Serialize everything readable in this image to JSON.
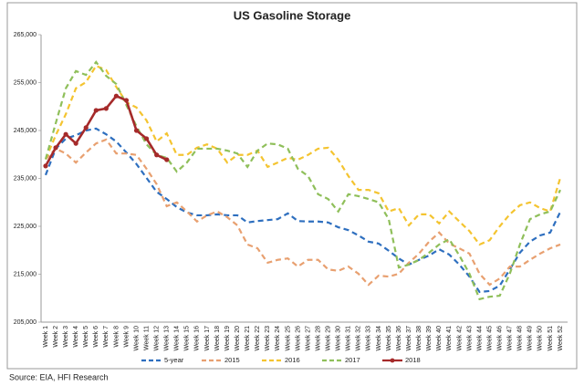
{
  "chart_data": {
    "type": "line",
    "title": "US Gasoline Storage",
    "categories": [
      "Week 1",
      "Week 2",
      "Week 3",
      "Week 4",
      "Week 5",
      "Week 6",
      "Week 7",
      "Week 8",
      "Week 9",
      "Week 10",
      "Week 11",
      "Week 12",
      "Week 13",
      "Week 14",
      "Week 15",
      "Week 16",
      "Week 17",
      "Week 18",
      "Week 19",
      "Week 20",
      "Week 21",
      "Week 22",
      "Week 23",
      "Week 24",
      "Week 25",
      "Week 26",
      "Week 27",
      "Week 28",
      "Week 29",
      "Week 30",
      "Week 31",
      "Week 32",
      "Week 33",
      "Week 34",
      "Week 35",
      "Week 36",
      "Week 37",
      "Week 38",
      "Week 39",
      "Week 40",
      "Week 41",
      "Week 42",
      "Week 43",
      "Week 44",
      "Week 45",
      "Week 46",
      "Week 47",
      "Week 48",
      "Week 49",
      "Week 50",
      "Week 51",
      "Week 52"
    ],
    "ylim": [
      205000,
      265000
    ],
    "yticks": [
      {
        "value": 205000,
        "label": "205,000"
      },
      {
        "value": 215000,
        "label": "215,000"
      },
      {
        "value": 225000,
        "label": "225,000"
      },
      {
        "value": 235000,
        "label": "235,000"
      },
      {
        "value": 245000,
        "label": "245,000"
      },
      {
        "value": 255000,
        "label": "255,000"
      },
      {
        "value": 265000,
        "label": "265,000"
      }
    ],
    "grid": false,
    "legend": "bottom",
    "series": [
      {
        "name": "5-year",
        "color": "#2e6fbf",
        "dashed": true,
        "markers": false,
        "values": [
          235700,
          241200,
          243300,
          244000,
          245000,
          245400,
          244200,
          242700,
          240400,
          238000,
          235100,
          232200,
          230700,
          229000,
          227900,
          227300,
          227300,
          227500,
          227300,
          227300,
          225800,
          226100,
          226300,
          226500,
          227700,
          226100,
          226000,
          226000,
          225800,
          224800,
          224200,
          223100,
          221800,
          221400,
          219900,
          218300,
          217000,
          218000,
          218900,
          220200,
          219100,
          217000,
          214500,
          211300,
          211500,
          212600,
          216000,
          219500,
          221800,
          223100,
          223700,
          228000
        ]
      },
      {
        "name": "2015",
        "color": "#e8a070",
        "dashed": true,
        "markers": false,
        "values": [
          239000,
          241200,
          240200,
          238300,
          240400,
          242300,
          243100,
          240200,
          240200,
          239900,
          237000,
          233800,
          229200,
          230000,
          228100,
          226000,
          227300,
          228100,
          226900,
          225200,
          221200,
          220400,
          217400,
          218000,
          218300,
          216600,
          218000,
          218000,
          216000,
          215700,
          216600,
          215100,
          212800,
          214700,
          214500,
          215100,
          217400,
          219300,
          221800,
          223700,
          221400,
          220400,
          219300,
          215100,
          212800,
          214100,
          216600,
          216600,
          218000,
          219300,
          220400,
          221200
        ]
      },
      {
        "name": "2016",
        "color": "#f4c430",
        "dashed": true,
        "markers": false,
        "values": [
          239000,
          244000,
          248400,
          253800,
          255100,
          258500,
          257600,
          254100,
          250900,
          249800,
          247100,
          242700,
          244400,
          239900,
          239900,
          241400,
          242100,
          241200,
          238300,
          239900,
          239900,
          240800,
          237400,
          238300,
          239300,
          238900,
          239900,
          241200,
          241400,
          238900,
          235500,
          232600,
          232600,
          231900,
          228100,
          228800,
          225200,
          227500,
          227500,
          225600,
          228100,
          226000,
          224000,
          221200,
          222100,
          225000,
          227500,
          229400,
          230000,
          228800,
          228100,
          235100
        ]
      },
      {
        "name": "2017",
        "color": "#8fbf5a",
        "dashed": true,
        "markers": false,
        "values": [
          239000,
          246500,
          253800,
          257400,
          256600,
          259300,
          256400,
          254700,
          250300,
          245900,
          242100,
          239900,
          239300,
          236400,
          238300,
          241200,
          241200,
          241200,
          240800,
          240200,
          237400,
          240800,
          242300,
          242100,
          241200,
          237000,
          235500,
          231700,
          230700,
          228100,
          231700,
          231300,
          230700,
          230000,
          226500,
          216400,
          217000,
          218000,
          219500,
          221200,
          222300,
          218900,
          215100,
          209800,
          210300,
          210500,
          215100,
          221200,
          226500,
          227500,
          228100,
          232600
        ]
      },
      {
        "name": "2018",
        "color": "#a52a2a",
        "dashed": false,
        "markers": true,
        "values": [
          237600,
          241400,
          244200,
          242300,
          245600,
          249200,
          249600,
          252200,
          251300,
          245000,
          243300,
          239900,
          238900,
          null,
          null,
          null,
          null,
          null,
          null,
          null,
          null,
          null,
          null,
          null,
          null,
          null,
          null,
          null,
          null,
          null,
          null,
          null,
          null,
          null,
          null,
          null,
          null,
          null,
          null,
          null,
          null,
          null,
          null,
          null,
          null,
          null,
          null,
          null,
          null,
          null,
          null,
          null
        ]
      }
    ]
  },
  "source": "Source: EIA, HFI Research"
}
